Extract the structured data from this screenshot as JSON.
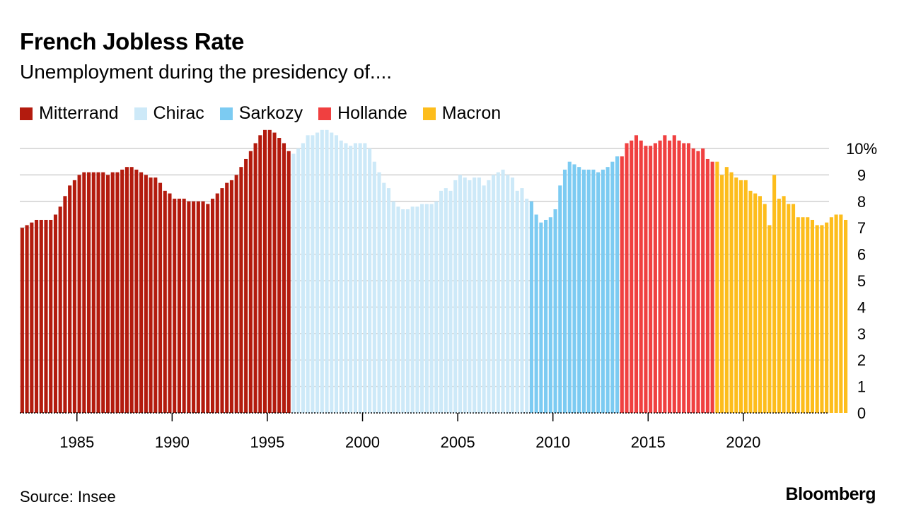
{
  "header": {
    "title": "French Jobless Rate",
    "subtitle": "Unemployment during the presidency of...."
  },
  "footer": {
    "source": "Source: Insee",
    "brand": "Bloomberg"
  },
  "chart_data": {
    "type": "bar",
    "title": "French Jobless Rate",
    "subtitle": "Unemployment during the presidency of....",
    "xlabel": "",
    "ylabel": "",
    "unit": "%",
    "frequency": "quarterly",
    "x_start": "1982 Q1",
    "xlim": [
      1982.0,
      2024.5
    ],
    "ylim": [
      0,
      10.5
    ],
    "grid": true,
    "legend_position": "top-left",
    "y_ticks": [
      {
        "value": 0,
        "label": "0"
      },
      {
        "value": 1,
        "label": "1"
      },
      {
        "value": 2,
        "label": "2"
      },
      {
        "value": 3,
        "label": "3"
      },
      {
        "value": 4,
        "label": "4"
      },
      {
        "value": 5,
        "label": "5"
      },
      {
        "value": 6,
        "label": "6"
      },
      {
        "value": 7,
        "label": "7"
      },
      {
        "value": 8,
        "label": "8"
      },
      {
        "value": 9,
        "label": "9"
      },
      {
        "value": 10,
        "label": "10%"
      }
    ],
    "x_ticks": [
      {
        "value": 1985,
        "label": "1985"
      },
      {
        "value": 1990,
        "label": "1990"
      },
      {
        "value": 1995,
        "label": "1995"
      },
      {
        "value": 2000,
        "label": "2000"
      },
      {
        "value": 2005,
        "label": "2005"
      },
      {
        "value": 2010,
        "label": "2010"
      },
      {
        "value": 2015,
        "label": "2015"
      },
      {
        "value": 2020,
        "label": "2020"
      }
    ],
    "series": [
      {
        "name": "Mitterrand",
        "color": "#b31b0e",
        "start": "1982 Q1",
        "values": [
          7.0,
          7.1,
          7.2,
          7.3,
          7.3,
          7.3,
          7.3,
          7.5,
          7.8,
          8.2,
          8.6,
          8.8,
          9.0,
          9.1,
          9.1,
          9.1,
          9.1,
          9.1,
          9.0,
          9.1,
          9.1,
          9.2,
          9.3,
          9.3,
          9.2,
          9.1,
          9.0,
          8.9,
          8.9,
          8.7,
          8.4,
          8.3,
          8.1,
          8.1,
          8.1,
          8.0,
          8.0,
          8.0,
          8.0,
          7.9,
          8.1,
          8.3,
          8.5,
          8.7,
          8.8,
          9.0,
          9.3,
          9.6,
          9.9,
          10.2,
          10.5,
          10.7,
          10.7,
          10.6,
          10.4,
          10.2,
          9.9
        ]
      },
      {
        "name": "Chirac",
        "color": "#cde9f8",
        "start": "1996 Q2",
        "values": [
          9.8,
          10.0,
          10.2,
          10.5,
          10.5,
          10.6,
          10.7,
          10.7,
          10.6,
          10.5,
          10.3,
          10.2,
          10.1,
          10.2,
          10.2,
          10.2,
          10.0,
          9.5,
          9.1,
          8.7,
          8.5,
          8.0,
          7.8,
          7.7,
          7.7,
          7.8,
          7.8,
          7.9,
          7.9,
          7.9,
          8.0,
          8.4,
          8.5,
          8.4,
          8.8,
          9.0,
          8.9,
          8.8,
          8.9,
          8.9,
          8.6,
          8.8,
          9.0,
          9.1,
          9.2,
          9.0,
          8.9,
          8.4,
          8.5,
          8.1
        ]
      },
      {
        "name": "Sarkozy",
        "color": "#7ccbf2",
        "start": "2008 Q4",
        "values": [
          8.0,
          7.5,
          7.2,
          7.3,
          7.4,
          7.7,
          8.6,
          9.2,
          9.5,
          9.4,
          9.3,
          9.2,
          9.2,
          9.2,
          9.1,
          9.2,
          9.3,
          9.5,
          9.7
        ]
      },
      {
        "name": "Hollande",
        "color": "#f04040",
        "start": "2013 Q3",
        "values": [
          9.7,
          10.2,
          10.3,
          10.5,
          10.3,
          10.1,
          10.1,
          10.2,
          10.3,
          10.5,
          10.3,
          10.5,
          10.3,
          10.2,
          10.2,
          10.0,
          9.9,
          10.0,
          9.6,
          9.5
        ]
      },
      {
        "name": "Macron",
        "color": "#fdbd1c",
        "start": "2018 Q3",
        "values": [
          9.5,
          9.0,
          9.3,
          9.1,
          8.9,
          8.8,
          8.8,
          8.4,
          8.3,
          8.2,
          7.9,
          7.1,
          9.0,
          8.1,
          8.2,
          7.9,
          7.9,
          7.4,
          7.4,
          7.4,
          7.3,
          7.1,
          7.1,
          7.2,
          7.4,
          7.5,
          7.5,
          7.3
        ]
      }
    ]
  }
}
